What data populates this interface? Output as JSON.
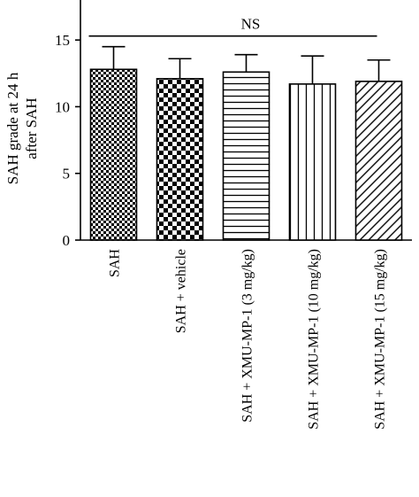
{
  "chart_data": {
    "type": "bar",
    "ylabel_lines": [
      "SAH grade at 24 h",
      "after SAH"
    ],
    "categories": [
      "SAH",
      "SAH + vehicle",
      "SAH + XMU-MP-1 (3 mg/kg)",
      "SAH + XMU-MP-1 (10 mg/kg)",
      "SAH + XMU-MP-1 (15 mg/kg)"
    ],
    "values": [
      12.8,
      12.1,
      12.6,
      11.7,
      11.9
    ],
    "errors": [
      1.7,
      1.5,
      1.3,
      2.1,
      1.6
    ],
    "patterns": [
      "checker-fine",
      "checker-coarse",
      "horizontal-lines",
      "vertical-lines",
      "diagonal-lines"
    ],
    "ylim": [
      0,
      18
    ],
    "yticks": [
      0,
      5,
      10,
      15
    ],
    "annotation": {
      "text": "NS",
      "from_category": 0,
      "to_category": 4,
      "y": 15.3
    },
    "grid": false,
    "colors": {
      "bar_stroke": "#000000",
      "pattern": "#000000",
      "background": "#ffffff"
    }
  }
}
